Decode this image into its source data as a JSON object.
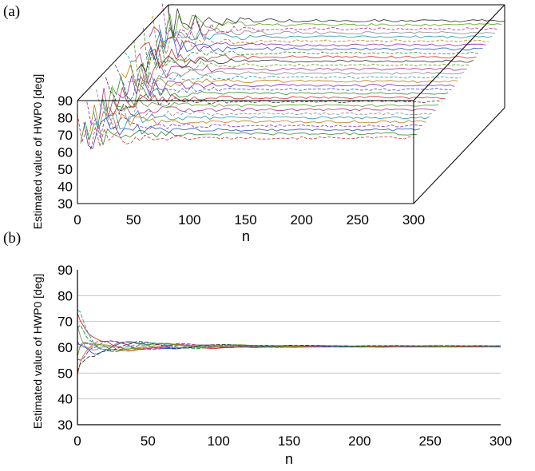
{
  "chart_data": [
    {
      "panel": "(a)",
      "type": "line",
      "view": "3d",
      "xlabel": "n",
      "ylabel": "Estimated value of HWP0 [deg]",
      "xlim": [
        0,
        300
      ],
      "ylim": [
        30,
        90
      ],
      "xticks": [
        "0",
        "50",
        "100",
        "150",
        "200",
        "250",
        "300"
      ],
      "yticks": [
        "30",
        "40",
        "50",
        "60",
        "70",
        "80",
        "90"
      ],
      "series_count": 30,
      "converged_values_range": [
        60,
        90
      ],
      "grid": false,
      "legend": "none"
    },
    {
      "panel": "(b)",
      "type": "line",
      "xlabel": "n",
      "ylabel": "Estimated value of HWP0 [deg]",
      "xlim": [
        0,
        300
      ],
      "ylim": [
        30,
        90
      ],
      "xticks": [
        "0",
        "50",
        "100",
        "150",
        "200",
        "250",
        "300"
      ],
      "yticks": [
        "30",
        "40",
        "50",
        "60",
        "70",
        "80",
        "90"
      ],
      "series_count": 10,
      "converged_value": 60,
      "early_range": [
        45,
        76
      ],
      "grid": true,
      "legend": "none"
    }
  ]
}
